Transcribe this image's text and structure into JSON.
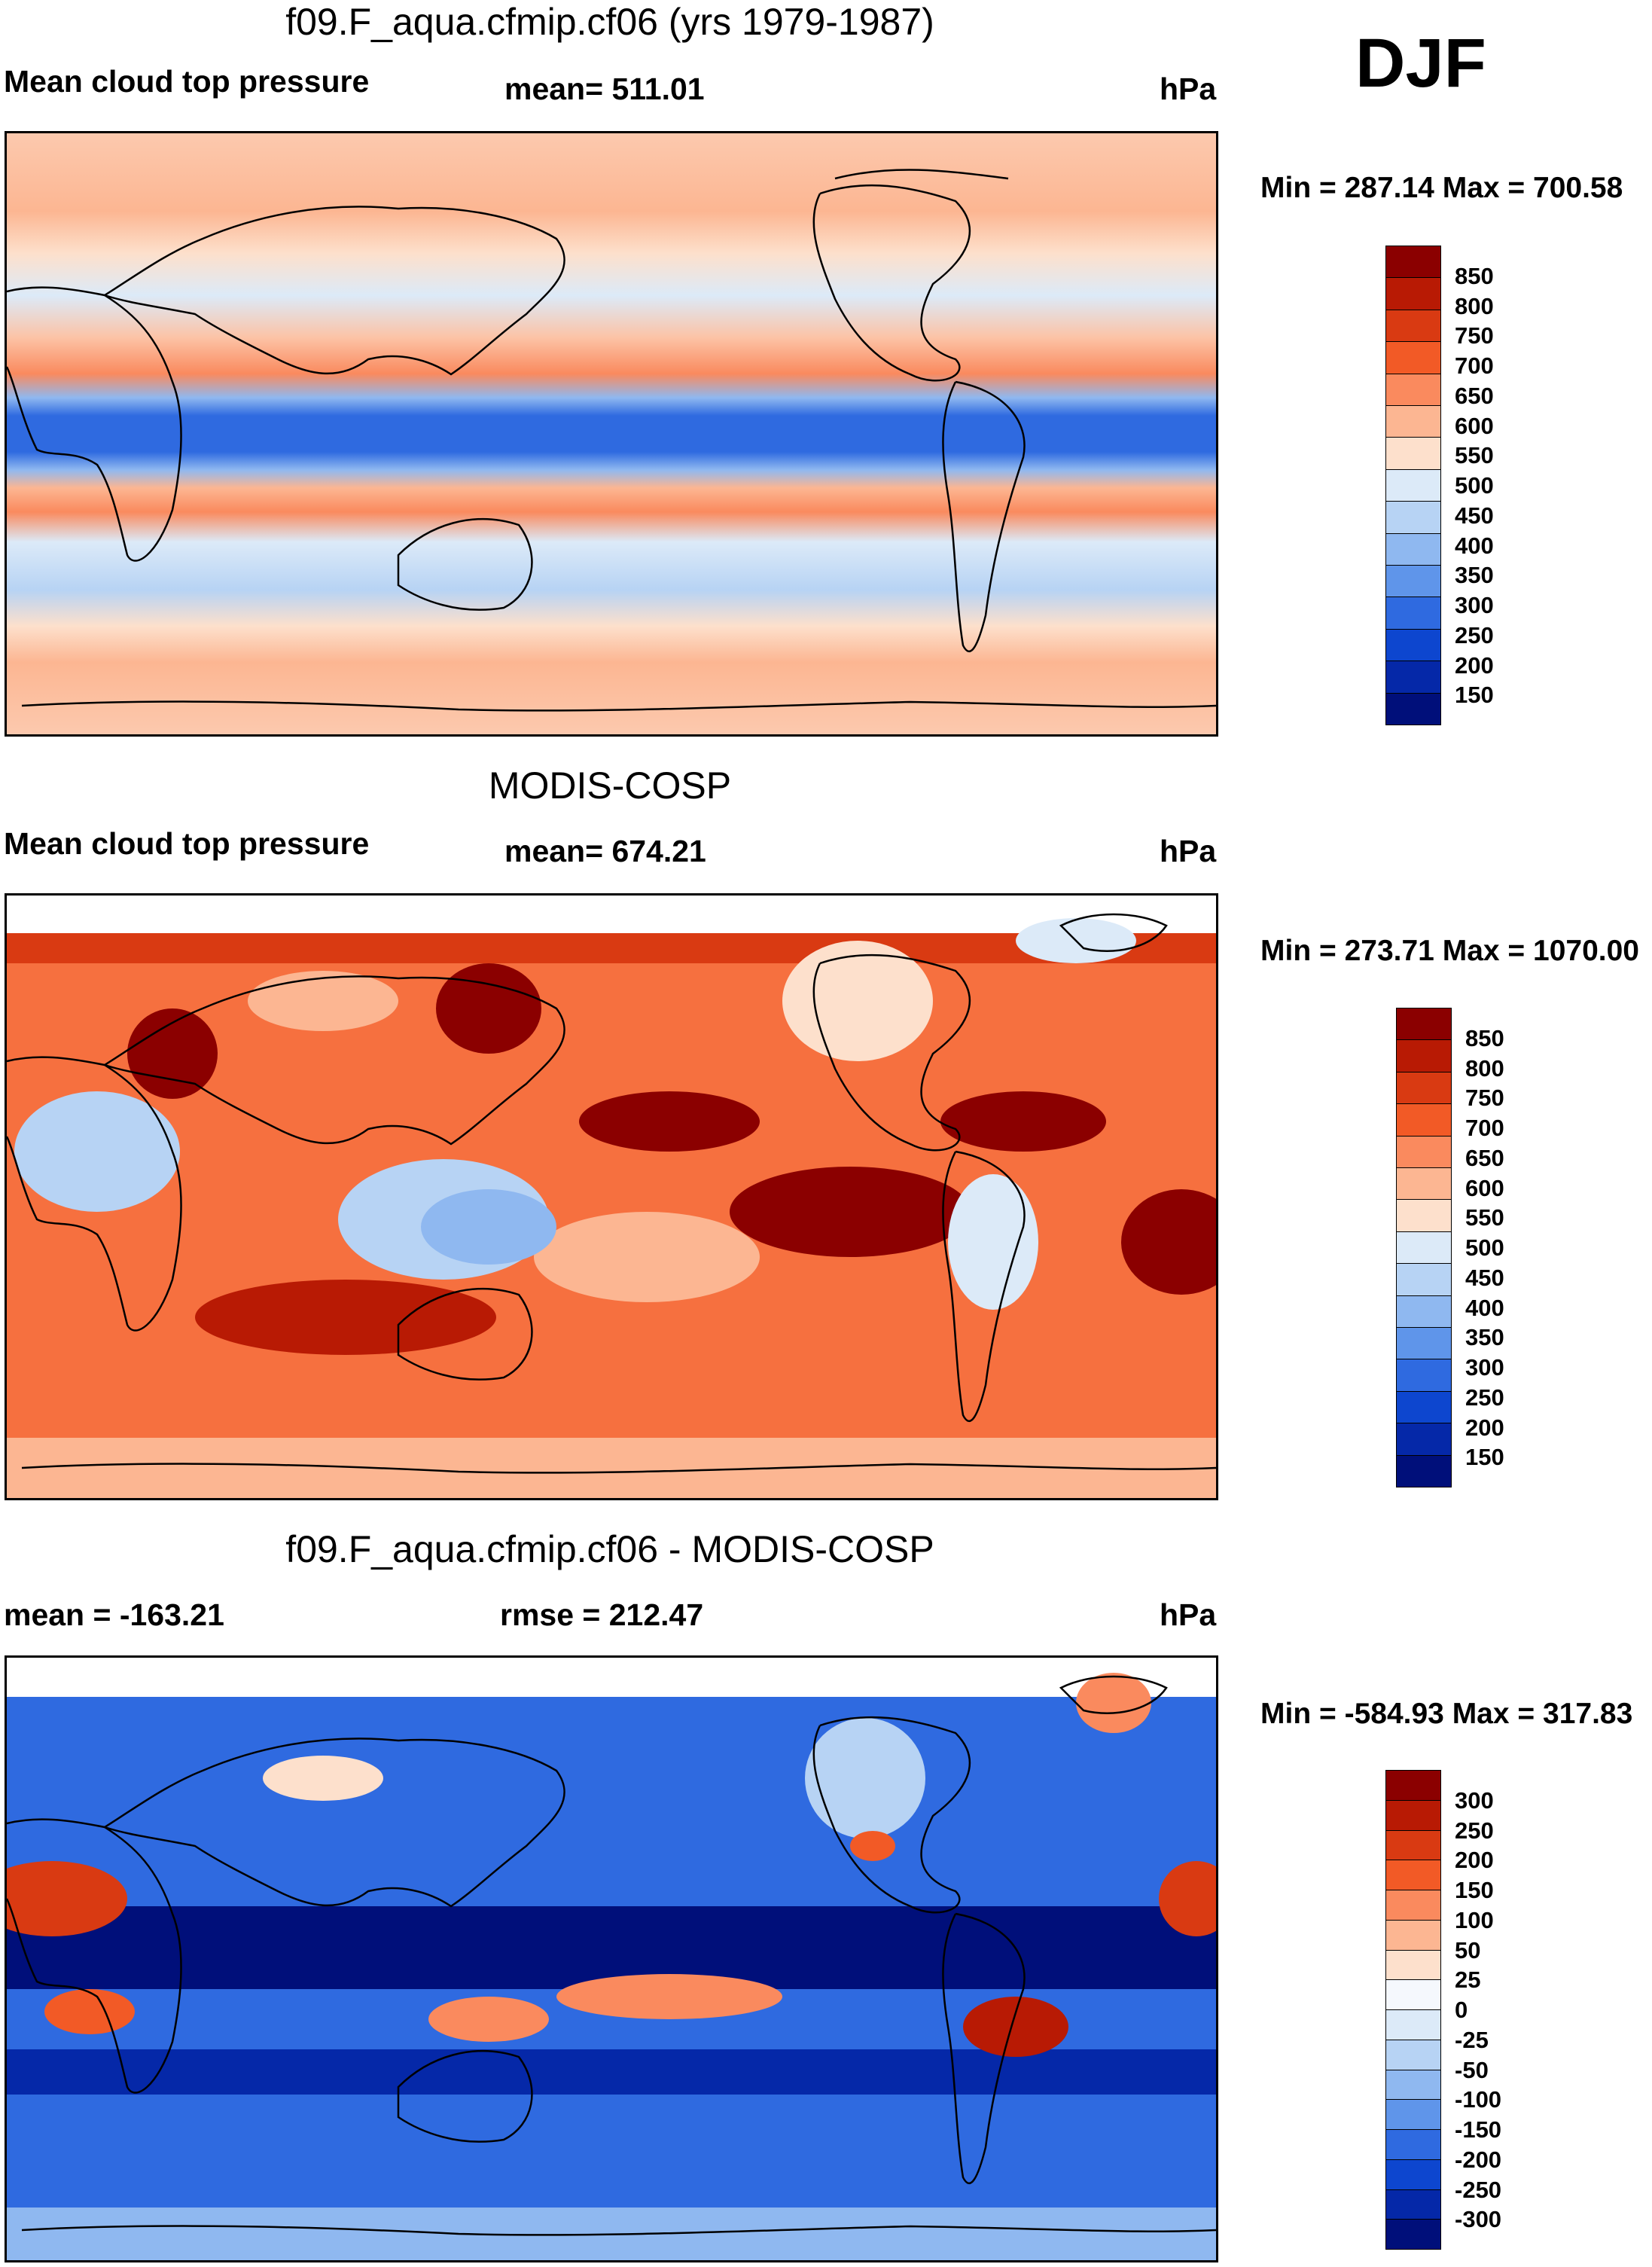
{
  "season": "DJF",
  "panels": [
    {
      "id": "model",
      "title": "f09.F_aqua.cfmip.cf06 (yrs 1979-1987)",
      "left_label": "Mean cloud top pressure",
      "center_label": "mean= 511.01",
      "right_label": "hPa",
      "minmax": "Min = 287.14 Max = 700.58",
      "colorbar": {
        "labels": [
          "850",
          "800",
          "750",
          "700",
          "650",
          "600",
          "550",
          "500",
          "450",
          "400",
          "350",
          "300",
          "250",
          "200",
          "150"
        ],
        "colors": [
          "#8b0000",
          "#b81a04",
          "#d93a12",
          "#f25a26",
          "#fa8a5e",
          "#fcb692",
          "#fde0cc",
          "#dceaf8",
          "#b7d3f4",
          "#8fb8f0",
          "#5f95ea",
          "#2f6ae0",
          "#0d46cf",
          "#0528a8",
          "#000f7a"
        ]
      }
    },
    {
      "id": "obs",
      "title": "MODIS-COSP",
      "left_label": "Mean cloud top pressure",
      "center_label": "mean= 674.21",
      "right_label": "hPa",
      "minmax": "Min = 273.71 Max = 1070.00",
      "colorbar": {
        "labels": [
          "850",
          "800",
          "750",
          "700",
          "650",
          "600",
          "550",
          "500",
          "450",
          "400",
          "350",
          "300",
          "250",
          "200",
          "150"
        ],
        "colors": [
          "#8b0000",
          "#b81a04",
          "#d93a12",
          "#f25a26",
          "#fa8a5e",
          "#fcb692",
          "#fde0cc",
          "#dceaf8",
          "#b7d3f4",
          "#8fb8f0",
          "#5f95ea",
          "#2f6ae0",
          "#0d46cf",
          "#0528a8",
          "#000f7a"
        ]
      }
    },
    {
      "id": "diff",
      "title": "f09.F_aqua.cfmip.cf06 - MODIS-COSP",
      "left_label": "mean = -163.21",
      "center_label": "rmse = 212.47",
      "right_label": "hPa",
      "minmax": "Min = -584.93 Max = 317.83",
      "colorbar": {
        "labels": [
          "300",
          "250",
          "200",
          "150",
          "100",
          "50",
          "25",
          "0",
          "-25",
          "-50",
          "-100",
          "-150",
          "-200",
          "-250",
          "-300"
        ],
        "colors": [
          "#8b0000",
          "#b81a04",
          "#d93a12",
          "#f25a26",
          "#fa8a5e",
          "#fcb692",
          "#fde0cc",
          "#f5f8fd",
          "#dceaf8",
          "#b7d3f4",
          "#8fb8f0",
          "#5f95ea",
          "#2f6ae0",
          "#0d46cf",
          "#0528a8",
          "#000f7a"
        ]
      }
    }
  ]
}
